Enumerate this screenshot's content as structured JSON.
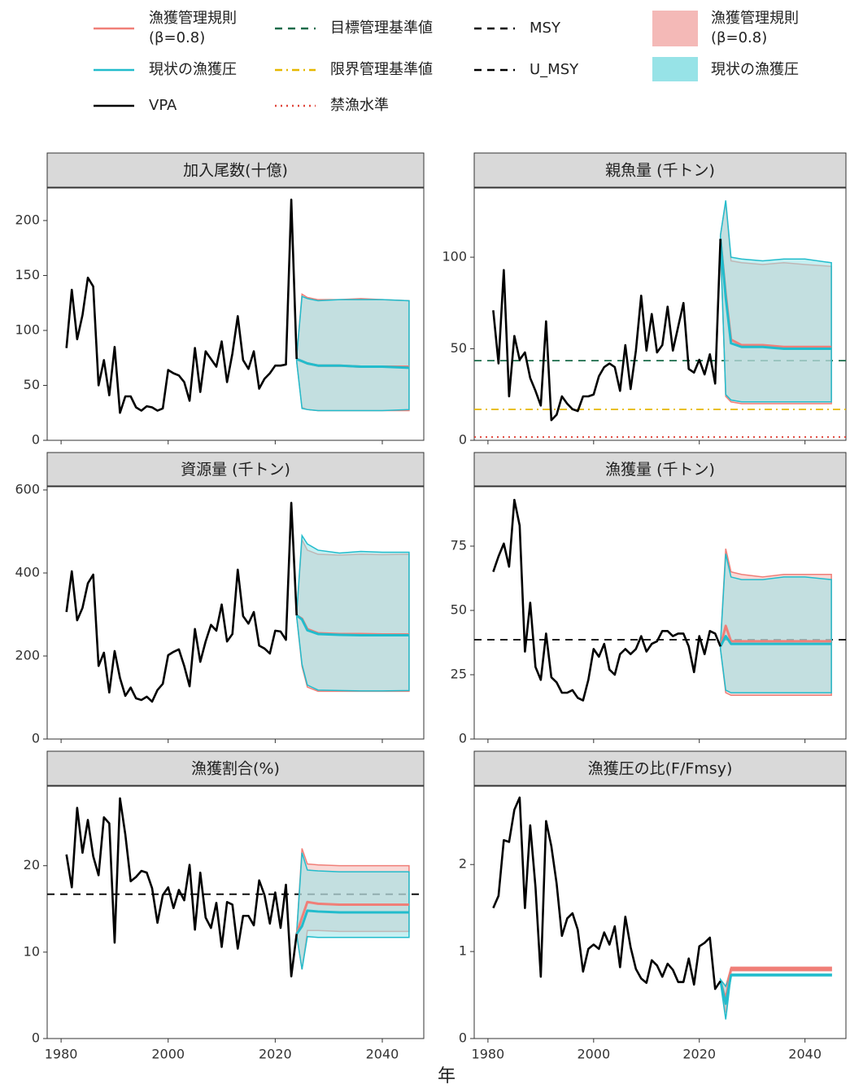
{
  "legend": {
    "lines": [
      {
        "name": [
          "漁獲管理規則",
          "(β=0.8)"
        ],
        "color": "#f07f78",
        "style": "solid"
      },
      {
        "name": [
          "現状の漁獲圧"
        ],
        "color": "#22bccc",
        "style": "solid"
      },
      {
        "name": [
          "VPA"
        ],
        "color": "#000000",
        "style": "solid"
      },
      {
        "name": [
          "目標管理基準値"
        ],
        "color": "#1a6b4a",
        "style": "dashed"
      },
      {
        "name": [
          "限界管理基準値"
        ],
        "color": "#e6b800",
        "style": "dashdot"
      },
      {
        "name": [
          "禁漁水準"
        ],
        "color": "#e0443a",
        "style": "dotted"
      },
      {
        "name": [
          "MSY"
        ],
        "color": "#000000",
        "style": "dashed"
      },
      {
        "name": [
          "U_MSY"
        ],
        "color": "#000000",
        "style": "dashed"
      }
    ],
    "fills": [
      {
        "name": [
          "漁獲管理規則",
          "(β=0.8)"
        ],
        "color": "#f4b9b7"
      },
      {
        "name": [
          "現状の漁獲圧"
        ],
        "color": "#97e3e7"
      }
    ]
  },
  "xlabel": "年",
  "xlim": [
    1977.4,
    2047.75
  ],
  "xticks": [
    1980,
    2000,
    2020,
    2040
  ],
  "vpa_years": [
    1981,
    1982,
    1983,
    1984,
    1985,
    1986,
    1987,
    1988,
    1989,
    1990,
    1991,
    1992,
    1993,
    1994,
    1995,
    1996,
    1997,
    1998,
    1999,
    2000,
    2001,
    2002,
    2003,
    2004,
    2005,
    2006,
    2007,
    2008,
    2009,
    2010,
    2011,
    2012,
    2013,
    2014,
    2015,
    2016,
    2017,
    2018,
    2019,
    2020,
    2021,
    2022,
    2023,
    2024
  ],
  "projection_years": [
    2024,
    2025,
    2026,
    2028,
    2032,
    2036,
    2040,
    2045
  ],
  "chart_data": [
    {
      "type": "line",
      "title": "加入尾数(十億)",
      "ylim": [
        0,
        229.6
      ],
      "yticks": [
        0,
        50,
        100,
        150,
        200
      ],
      "vpa": [
        84,
        137,
        92,
        114,
        148,
        140,
        50,
        73,
        41,
        85,
        25,
        40,
        40,
        30,
        27,
        31,
        30,
        27,
        29,
        64,
        61,
        59,
        53,
        36,
        84,
        44,
        81,
        74,
        67,
        90,
        53,
        79,
        113,
        73,
        65,
        81,
        47,
        56,
        61,
        68,
        68,
        69,
        219,
        74
      ],
      "projections": [
        {
          "values": [
            74,
            72,
            70,
            68,
            68,
            67,
            67,
            67
          ],
          "lower": [
            72,
            30,
            28,
            27,
            27,
            27,
            27,
            27
          ],
          "upper": [
            76,
            133,
            130,
            128,
            128,
            129,
            128,
            127
          ]
        },
        {
          "values": [
            74,
            72,
            70,
            68,
            68,
            67,
            67,
            66
          ],
          "lower": [
            72,
            29,
            28,
            27,
            27,
            27,
            27,
            28
          ],
          "upper": [
            76,
            131,
            129,
            127,
            128,
            128,
            128,
            127
          ]
        }
      ]
    },
    {
      "type": "line",
      "title": "親魚量 (千トン)",
      "ylim": [
        0,
        137.8
      ],
      "yticks": [
        0,
        50,
        100
      ],
      "vpa": [
        71,
        42,
        93,
        24,
        57,
        44,
        48,
        34,
        27,
        19,
        65,
        11,
        14,
        24,
        20,
        17,
        16,
        24,
        24,
        25,
        35,
        40,
        42,
        40,
        27,
        52,
        28,
        49,
        79,
        49,
        69,
        48,
        52,
        73,
        49,
        62,
        75,
        39,
        37,
        44,
        36,
        47,
        31,
        110
      ],
      "projections": [
        {
          "values": [
            110,
            80,
            55,
            52,
            52,
            51,
            51,
            51
          ],
          "lower": [
            108,
            24,
            21,
            20,
            20,
            20,
            20,
            20
          ],
          "upper": [
            112,
            130,
            98,
            97,
            96,
            97,
            96,
            95
          ]
        },
        {
          "values": [
            110,
            78,
            53,
            51,
            51,
            50,
            50,
            50
          ],
          "lower": [
            108,
            25,
            22,
            21,
            21,
            21,
            21,
            21
          ],
          "upper": [
            112,
            131,
            100,
            99,
            98,
            99,
            99,
            97
          ]
        }
      ],
      "target_ref": 43.5,
      "limit_ref": 16.9,
      "ban_ref": 1.8
    },
    {
      "type": "line",
      "title": "資源量 (千トン)",
      "ylim": [
        0,
        607.8
      ],
      "yticks": [
        0,
        200,
        400,
        600
      ],
      "vpa": [
        306,
        404,
        286,
        316,
        375,
        396,
        176,
        208,
        112,
        212,
        147,
        104,
        124,
        98,
        94,
        102,
        90,
        118,
        133,
        202,
        210,
        216,
        176,
        127,
        265,
        186,
        235,
        275,
        261,
        324,
        235,
        253,
        408,
        296,
        278,
        306,
        225,
        218,
        206,
        261,
        259,
        239,
        569,
        298
      ],
      "projections": [
        {
          "values": [
            298,
            290,
            265,
            255,
            253,
            253,
            252,
            252
          ],
          "lower": [
            295,
            175,
            125,
            115,
            115,
            115,
            115,
            115
          ],
          "upper": [
            301,
            480,
            455,
            445,
            443,
            445,
            444,
            445
          ]
        },
        {
          "values": [
            298,
            288,
            262,
            253,
            251,
            250,
            250,
            250
          ],
          "lower": [
            295,
            180,
            130,
            118,
            117,
            116,
            116,
            117
          ],
          "upper": [
            301,
            490,
            470,
            455,
            448,
            452,
            450,
            450
          ]
        }
      ]
    },
    {
      "type": "line",
      "title": "漁獲量 (千トン)",
      "ylim": [
        0,
        98.1
      ],
      "yticks": [
        0,
        25,
        50,
        75
      ],
      "vpa": [
        65,
        71,
        76,
        67,
        93,
        83,
        34,
        53,
        28,
        23,
        41,
        24,
        22,
        18,
        18,
        19,
        16,
        15,
        23,
        35,
        32,
        37,
        27,
        25,
        33,
        35,
        33,
        35,
        40,
        34,
        37,
        38,
        42,
        42,
        40,
        41,
        41,
        36,
        26,
        40,
        33,
        42,
        41,
        36
      ],
      "projections": [
        {
          "values": [
            36,
            44,
            38,
            38,
            38,
            38,
            38,
            38
          ],
          "lower": [
            35,
            18,
            17,
            17,
            17,
            17,
            17,
            17
          ],
          "upper": [
            37,
            74,
            65,
            64,
            63,
            64,
            64,
            64
          ]
        },
        {
          "values": [
            36,
            40,
            37,
            37,
            37,
            37,
            37,
            37
          ],
          "lower": [
            35,
            19,
            18,
            18,
            18,
            18,
            18,
            18
          ],
          "upper": [
            37,
            72,
            63,
            62,
            62,
            63,
            63,
            62
          ]
        }
      ],
      "msy_ref": 38.6
    },
    {
      "type": "line",
      "title": "漁獲割合(%)",
      "ylim": [
        0,
        29.2
      ],
      "yticks": [
        0,
        10,
        20
      ],
      "vpa": [
        21.3,
        17.5,
        26.7,
        21.5,
        25.3,
        21.1,
        18.9,
        25.6,
        24.9,
        11.1,
        27.8,
        23.6,
        18.2,
        18.7,
        19.4,
        19.2,
        17.4,
        13.4,
        16.6,
        17.5,
        15.1,
        17.2,
        16.0,
        20.1,
        12.6,
        19.2,
        14.0,
        12.8,
        15.7,
        10.6,
        15.8,
        15.5,
        10.4,
        14.2,
        14.2,
        13.1,
        18.3,
        16.6,
        13.3,
        16.9,
        12.8,
        17.8,
        7.2,
        12.1
      ],
      "projections": [
        {
          "values": [
            12.1,
            14,
            15.8,
            15.6,
            15.5,
            15.5,
            15.5,
            15.5
          ],
          "lower": [
            12,
            8,
            12.5,
            12.5,
            12.4,
            12.4,
            12.4,
            12.4
          ],
          "upper": [
            12.2,
            22,
            20.2,
            20.1,
            20,
            20,
            20,
            20
          ]
        },
        {
          "values": [
            12.1,
            13,
            14.8,
            14.7,
            14.6,
            14.6,
            14.6,
            14.6
          ],
          "lower": [
            12,
            8,
            11.8,
            11.7,
            11.7,
            11.7,
            11.7,
            11.7
          ],
          "upper": [
            12.2,
            21.5,
            19.5,
            19.4,
            19.3,
            19.3,
            19.3,
            19.3
          ]
        }
      ],
      "umsy_ref": 16.7
    },
    {
      "type": "line",
      "title": "漁獲圧の比(F/Fmsy)",
      "ylim": [
        0,
        2.9
      ],
      "yticks": [
        0,
        1,
        2
      ],
      "vpa": [
        1.5,
        1.64,
        2.28,
        2.26,
        2.63,
        2.77,
        1.5,
        2.45,
        1.74,
        0.71,
        2.5,
        2.21,
        1.78,
        1.18,
        1.38,
        1.44,
        1.25,
        0.77,
        1.03,
        1.08,
        1.03,
        1.22,
        1.08,
        1.29,
        0.82,
        1.4,
        1.05,
        0.8,
        0.69,
        0.64,
        0.9,
        0.84,
        0.71,
        0.86,
        0.79,
        0.65,
        0.65,
        0.92,
        0.62,
        1.06,
        1.1,
        1.16,
        0.57,
        0.66
      ],
      "projections": [
        {
          "values": [
            0.66,
            0.45,
            0.8,
            0.8,
            0.8,
            0.8,
            0.8,
            0.8
          ],
          "lower": [
            0.64,
            0.3,
            0.78,
            0.78,
            0.78,
            0.78,
            0.78,
            0.78
          ],
          "upper": [
            0.68,
            0.6,
            0.82,
            0.82,
            0.82,
            0.82,
            0.82,
            0.82
          ]
        },
        {
          "values": [
            0.66,
            0.4,
            0.73,
            0.73,
            0.73,
            0.73,
            0.73,
            0.73
          ],
          "lower": [
            0.64,
            0.22,
            0.72,
            0.72,
            0.72,
            0.72,
            0.72,
            0.72
          ],
          "upper": [
            0.68,
            0.6,
            0.74,
            0.74,
            0.74,
            0.74,
            0.74,
            0.74
          ]
        }
      ]
    }
  ]
}
